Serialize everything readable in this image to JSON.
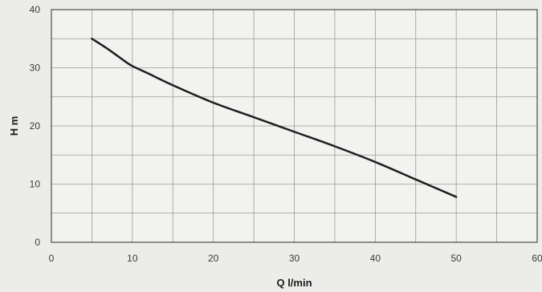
{
  "chart_data": {
    "type": "line",
    "title": "",
    "xlabel": "Q l/min",
    "ylabel": "H m",
    "xlim": [
      0,
      60
    ],
    "ylim": [
      0,
      40
    ],
    "x_ticks": [
      0,
      10,
      20,
      30,
      40,
      50,
      60
    ],
    "y_ticks": [
      0,
      10,
      20,
      30,
      40
    ],
    "grid": true,
    "series": [
      {
        "x": [
          5,
          7,
          9,
          10,
          12,
          15,
          20,
          25,
          30,
          35,
          40,
          45,
          50
        ],
        "y": [
          35,
          33.2,
          31.2,
          30.3,
          29,
          27,
          24,
          21.5,
          19,
          16.5,
          13.8,
          10.8,
          7.8
        ]
      }
    ],
    "colors": {
      "line": "#1e1e1e",
      "grid": "#9a9a9a",
      "frame": "#2a2a2a",
      "background": "#f2f2f0"
    }
  }
}
